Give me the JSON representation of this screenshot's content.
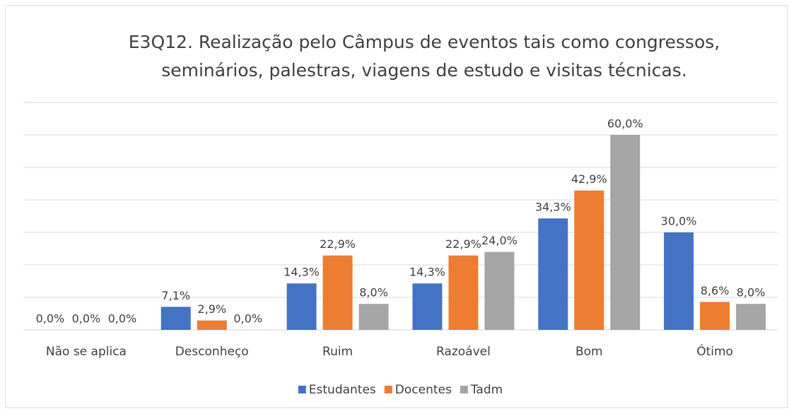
{
  "chart_data": {
    "type": "bar",
    "title": "E3Q12. Realização pelo Câmpus de eventos tais como congressos, seminários, palestras, viagens de estudo e visitas técnicas.",
    "categories": [
      "Não se aplica",
      "Desconheço",
      "Ruim",
      "Razoável",
      "Bom",
      "Ótimo"
    ],
    "series": [
      {
        "name": "Estudantes",
        "color": "#4472c4",
        "values": [
          0,
          7.1,
          14.3,
          14.3,
          34.3,
          30
        ],
        "value_labels": [
          "0,0%",
          "7,1%",
          "14,3%",
          "14,3%",
          "34,3%",
          "30,0%"
        ]
      },
      {
        "name": "Docentes",
        "color": "#ed7d31",
        "values": [
          0,
          2.9,
          22.9,
          22.9,
          42.9,
          8.6
        ],
        "value_labels": [
          "0,0%",
          "2,9%",
          "22,9%",
          "22,9%",
          "42,9%",
          "8,6%"
        ]
      },
      {
        "name": "Tadm",
        "color": "#a5a5a5",
        "values": [
          0,
          0,
          8,
          24,
          60,
          8
        ],
        "value_labels": [
          "0,0%",
          "0,0%",
          "8,0%",
          "24,0%",
          "60,0%",
          "8,0%"
        ]
      }
    ],
    "ylim": [
      0,
      70
    ],
    "yticks": [
      0,
      10,
      20,
      30,
      40,
      50,
      60,
      70
    ],
    "grid": true,
    "legend": "bottom"
  }
}
